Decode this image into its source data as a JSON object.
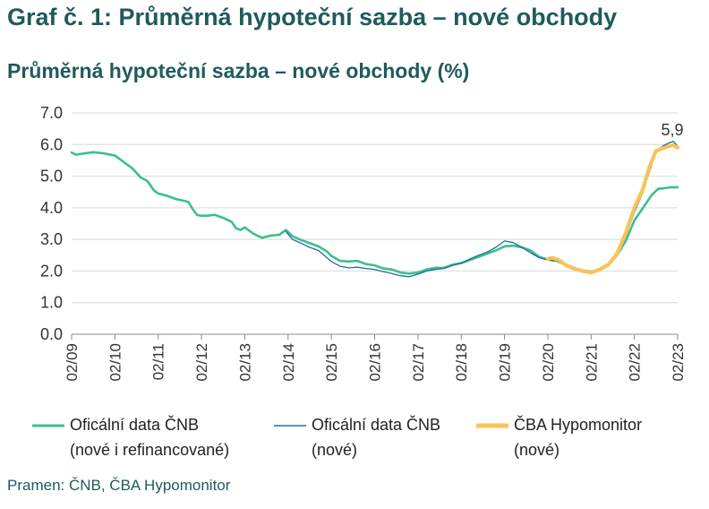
{
  "page_title": "Graf č. 1: Průměrná hypoteční sazba – nové obchody",
  "source": "Pramen: ČNB, ČBA Hypomonitor",
  "colors": {
    "title": "#1f5b5b",
    "cnb_all": "#3dbf8a",
    "cnb_new": "#1f6f9f",
    "cba": "#f7c35a"
  },
  "chart_data": {
    "type": "line",
    "title": "Průměrná hypoteční sazba – nové obchody (%)",
    "xlabel": "",
    "ylabel": "",
    "ylim": [
      0,
      7
    ],
    "yticks": [
      "0.0",
      "1.0",
      "2.0",
      "3.0",
      "4.0",
      "5.0",
      "6.0",
      "7.0"
    ],
    "xticks": [
      "02/09",
      "02/10",
      "02/11",
      "02/12",
      "02/13",
      "02/14",
      "02/15",
      "02/16",
      "02/17",
      "02/18",
      "02/19",
      "02/20",
      "02/21",
      "02/22",
      "02/23"
    ],
    "annotation": {
      "text": "5,9",
      "x": 2023.0,
      "y": 5.9
    },
    "grid": "horizontal",
    "legend_position": "bottom",
    "series": [
      {
        "name": "Oficální data ČNB",
        "name_line2": "(nové i refinancované)",
        "points": [
          [
            2009.0,
            5.75
          ],
          [
            2009.1,
            5.68
          ],
          [
            2009.3,
            5.72
          ],
          [
            2009.5,
            5.76
          ],
          [
            2009.75,
            5.72
          ],
          [
            2010.0,
            5.65
          ],
          [
            2010.2,
            5.45
          ],
          [
            2010.4,
            5.25
          ],
          [
            2010.6,
            4.95
          ],
          [
            2010.75,
            4.85
          ],
          [
            2010.9,
            4.55
          ],
          [
            2011.0,
            4.45
          ],
          [
            2011.2,
            4.38
          ],
          [
            2011.4,
            4.28
          ],
          [
            2011.6,
            4.22
          ],
          [
            2011.7,
            4.18
          ],
          [
            2011.8,
            3.95
          ],
          [
            2011.9,
            3.77
          ],
          [
            2012.0,
            3.75
          ],
          [
            2012.15,
            3.75
          ],
          [
            2012.3,
            3.78
          ],
          [
            2012.5,
            3.68
          ],
          [
            2012.7,
            3.55
          ],
          [
            2012.8,
            3.35
          ],
          [
            2012.9,
            3.3
          ],
          [
            2013.0,
            3.38
          ],
          [
            2013.2,
            3.18
          ],
          [
            2013.4,
            3.05
          ],
          [
            2013.6,
            3.12
          ],
          [
            2013.8,
            3.15
          ],
          [
            2013.95,
            3.3
          ],
          [
            2014.1,
            3.1
          ],
          [
            2014.3,
            2.98
          ],
          [
            2014.5,
            2.88
          ],
          [
            2014.7,
            2.78
          ],
          [
            2014.9,
            2.62
          ],
          [
            2015.0,
            2.48
          ],
          [
            2015.2,
            2.32
          ],
          [
            2015.4,
            2.3
          ],
          [
            2015.6,
            2.32
          ],
          [
            2015.8,
            2.22
          ],
          [
            2016.0,
            2.18
          ],
          [
            2016.2,
            2.08
          ],
          [
            2016.4,
            2.05
          ],
          [
            2016.6,
            1.95
          ],
          [
            2016.8,
            1.92
          ],
          [
            2017.0,
            1.95
          ],
          [
            2017.2,
            2.05
          ],
          [
            2017.4,
            2.1
          ],
          [
            2017.6,
            2.1
          ],
          [
            2017.8,
            2.2
          ],
          [
            2018.0,
            2.25
          ],
          [
            2018.2,
            2.35
          ],
          [
            2018.4,
            2.45
          ],
          [
            2018.6,
            2.55
          ],
          [
            2018.8,
            2.65
          ],
          [
            2019.0,
            2.78
          ],
          [
            2019.2,
            2.8
          ],
          [
            2019.4,
            2.75
          ],
          [
            2019.6,
            2.65
          ],
          [
            2019.8,
            2.45
          ],
          [
            2020.0,
            2.36
          ],
          [
            2020.2,
            2.32
          ],
          [
            2020.4,
            2.2
          ],
          [
            2020.6,
            2.1
          ],
          [
            2020.8,
            2.02
          ],
          [
            2021.0,
            1.98
          ],
          [
            2021.2,
            2.05
          ],
          [
            2021.4,
            2.2
          ],
          [
            2021.6,
            2.5
          ],
          [
            2021.8,
            2.95
          ],
          [
            2022.0,
            3.6
          ],
          [
            2022.2,
            4.0
          ],
          [
            2022.4,
            4.4
          ],
          [
            2022.55,
            4.6
          ],
          [
            2022.7,
            4.62
          ],
          [
            2022.85,
            4.65
          ],
          [
            2023.0,
            4.65
          ]
        ]
      },
      {
        "name": "Oficální data ČNB",
        "name_line2": "(nové)",
        "points": [
          [
            2013.95,
            3.25
          ],
          [
            2014.1,
            3.0
          ],
          [
            2014.3,
            2.88
          ],
          [
            2014.5,
            2.75
          ],
          [
            2014.7,
            2.65
          ],
          [
            2014.9,
            2.42
          ],
          [
            2015.0,
            2.3
          ],
          [
            2015.2,
            2.15
          ],
          [
            2015.4,
            2.1
          ],
          [
            2015.6,
            2.12
          ],
          [
            2015.8,
            2.08
          ],
          [
            2016.0,
            2.05
          ],
          [
            2016.2,
            1.98
          ],
          [
            2016.4,
            1.92
          ],
          [
            2016.6,
            1.85
          ],
          [
            2016.8,
            1.82
          ],
          [
            2017.0,
            1.9
          ],
          [
            2017.2,
            2.0
          ],
          [
            2017.4,
            2.05
          ],
          [
            2017.6,
            2.08
          ],
          [
            2017.8,
            2.18
          ],
          [
            2018.0,
            2.25
          ],
          [
            2018.2,
            2.38
          ],
          [
            2018.4,
            2.5
          ],
          [
            2018.6,
            2.6
          ],
          [
            2018.8,
            2.75
          ],
          [
            2019.0,
            2.95
          ],
          [
            2019.2,
            2.9
          ],
          [
            2019.4,
            2.75
          ],
          [
            2019.6,
            2.58
          ],
          [
            2019.8,
            2.42
          ],
          [
            2020.0,
            2.35
          ],
          [
            2020.2,
            2.32
          ],
          [
            2020.4,
            2.2
          ],
          [
            2020.6,
            2.08
          ],
          [
            2020.8,
            2.0
          ],
          [
            2021.0,
            1.95
          ],
          [
            2021.2,
            2.05
          ],
          [
            2021.4,
            2.2
          ],
          [
            2021.6,
            2.55
          ],
          [
            2021.8,
            3.1
          ],
          [
            2022.0,
            3.85
          ],
          [
            2022.2,
            4.5
          ],
          [
            2022.4,
            5.35
          ],
          [
            2022.5,
            5.8
          ],
          [
            2022.65,
            5.95
          ],
          [
            2022.8,
            6.05
          ],
          [
            2022.9,
            6.1
          ],
          [
            2023.0,
            5.95
          ]
        ]
      },
      {
        "name": "ČBA Hypomonitor",
        "name_line2": "(nové)",
        "points": [
          [
            2020.0,
            2.38
          ],
          [
            2020.1,
            2.42
          ],
          [
            2020.25,
            2.35
          ],
          [
            2020.4,
            2.2
          ],
          [
            2020.6,
            2.08
          ],
          [
            2020.8,
            2.0
          ],
          [
            2021.0,
            1.95
          ],
          [
            2021.2,
            2.05
          ],
          [
            2021.4,
            2.2
          ],
          [
            2021.6,
            2.55
          ],
          [
            2021.8,
            3.2
          ],
          [
            2022.0,
            4.0
          ],
          [
            2022.2,
            4.6
          ],
          [
            2022.35,
            5.3
          ],
          [
            2022.5,
            5.8
          ],
          [
            2022.65,
            5.88
          ],
          [
            2022.8,
            5.95
          ],
          [
            2022.9,
            5.98
          ],
          [
            2023.0,
            5.9
          ]
        ]
      }
    ]
  }
}
